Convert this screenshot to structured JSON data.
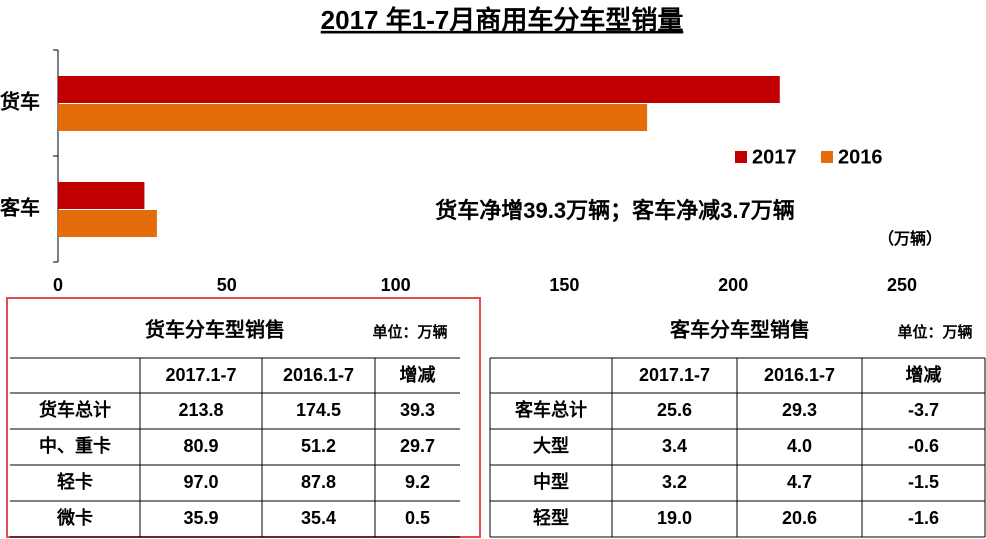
{
  "chart_data": {
    "type": "hbar",
    "title": "2017 年1-7月商用车分车型销量",
    "categories": [
      "货车",
      "客车"
    ],
    "series": [
      {
        "name": "2017",
        "color": "#c00000",
        "values": [
          213.8,
          25.6
        ]
      },
      {
        "name": "2016",
        "color": "#e46c0a",
        "values": [
          174.5,
          29.3
        ]
      }
    ],
    "xlim": [
      0,
      250
    ],
    "xticks": [
      0,
      50,
      100,
      150,
      200,
      250
    ],
    "annotation": "货车净增39.3万辆；客车净减3.7万辆",
    "unit": "（万辆）"
  },
  "tables": [
    {
      "title": "货车分车型销售",
      "unit": "单位：万辆",
      "columns": [
        "2017.1-7",
        "2016.1-7",
        "增减"
      ],
      "rows": [
        [
          "货车总计",
          "213.8",
          "174.5",
          "39.3"
        ],
        [
          "中、重卡",
          "80.9",
          "51.2",
          "29.7"
        ],
        [
          "轻卡",
          "97.0",
          "87.8",
          "9.2"
        ],
        [
          "微卡",
          "35.9",
          "35.4",
          "0.5"
        ]
      ]
    },
    {
      "title": "客车分车型销售",
      "unit": "单位：万辆",
      "columns": [
        "2017.1-7",
        "2016.1-7",
        "增减"
      ],
      "rows": [
        [
          "客车总计",
          "25.6",
          "29.3",
          "-3.7"
        ],
        [
          "大型",
          "3.4",
          "4.0",
          "-0.6"
        ],
        [
          "中型",
          "3.2",
          "4.7",
          "-1.5"
        ],
        [
          "轻型",
          "19.0",
          "20.6",
          "-1.6"
        ]
      ]
    }
  ]
}
